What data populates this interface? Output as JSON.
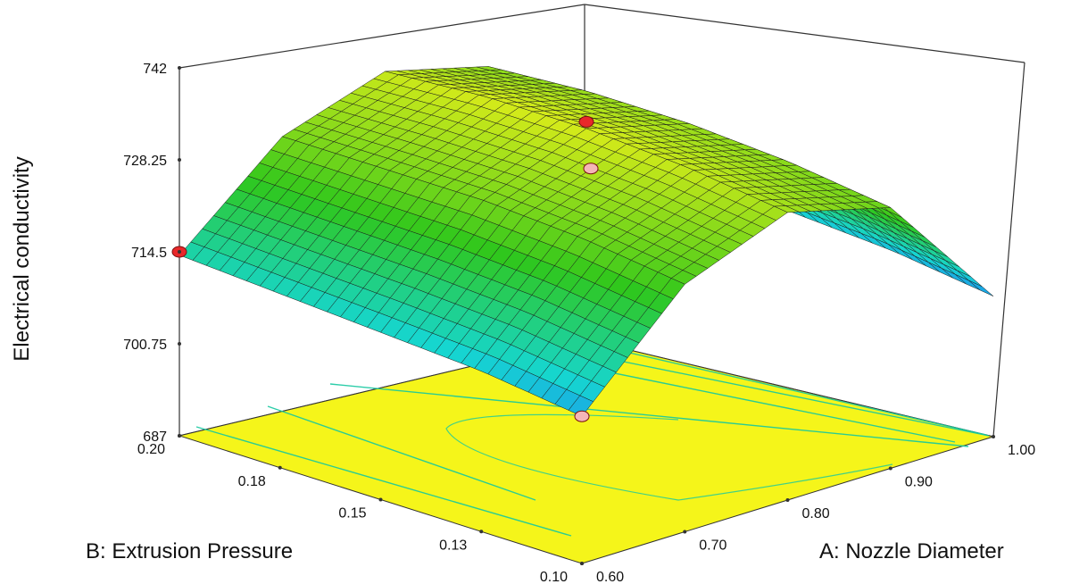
{
  "chart_data": {
    "type": "surface",
    "title": "",
    "zlabel": "Electrical conductivity",
    "xlabel": "A: Nozzle Diameter",
    "ylabel": "B: Extrusion Pressure",
    "x_ticks": [
      "0.60",
      "0.70",
      "0.80",
      "0.90",
      "1.00"
    ],
    "y_ticks": [
      "0.10",
      "0.13",
      "0.15",
      "0.18",
      "0.20"
    ],
    "z_ticks": [
      "687",
      "700.75",
      "714.5",
      "728.25",
      "742"
    ],
    "xlim": [
      0.6,
      1.0
    ],
    "ylim": [
      0.1,
      0.2
    ],
    "zlim": [
      687,
      742
    ],
    "surface_samples": {
      "note_axes": "rows: B (Extrusion Pressure), cols: A (Nozzle Diameter)",
      "A": [
        0.6,
        0.7,
        0.8,
        0.9,
        1.0
      ],
      "B": [
        0.1,
        0.125,
        0.15,
        0.175,
        0.2
      ],
      "z": [
        [
          709,
          724,
          730,
          726,
          708
        ],
        [
          711,
          726,
          732,
          728,
          710
        ],
        [
          712,
          727,
          733,
          729,
          711
        ],
        [
          713,
          727,
          733,
          729,
          711
        ],
        [
          714,
          727,
          732,
          728,
          710
        ]
      ]
    },
    "design_points": [
      {
        "A": 0.6,
        "B": 0.2,
        "z": 714.5,
        "color": "#e8282a"
      },
      {
        "A": 0.8,
        "B": 0.15,
        "z": 734,
        "color": "#e8282a"
      },
      {
        "A": 0.6,
        "B": 0.1,
        "z": 709,
        "color": "#f4b6b6"
      },
      {
        "A": 1.0,
        "B": 0.2,
        "z": 708,
        "color": "#f4b6b6"
      }
    ],
    "colors": {
      "contour_fill": "#f5f51a",
      "contour_line": "#16c8a0",
      "mesh_line": "#1a1a1a",
      "frame": "#333333",
      "surface_low": "#1e6cff",
      "surface_mid": "#16d6d0",
      "surface_high": "#2fc71c",
      "surface_top": "#e6ee1a"
    },
    "grid": false
  }
}
